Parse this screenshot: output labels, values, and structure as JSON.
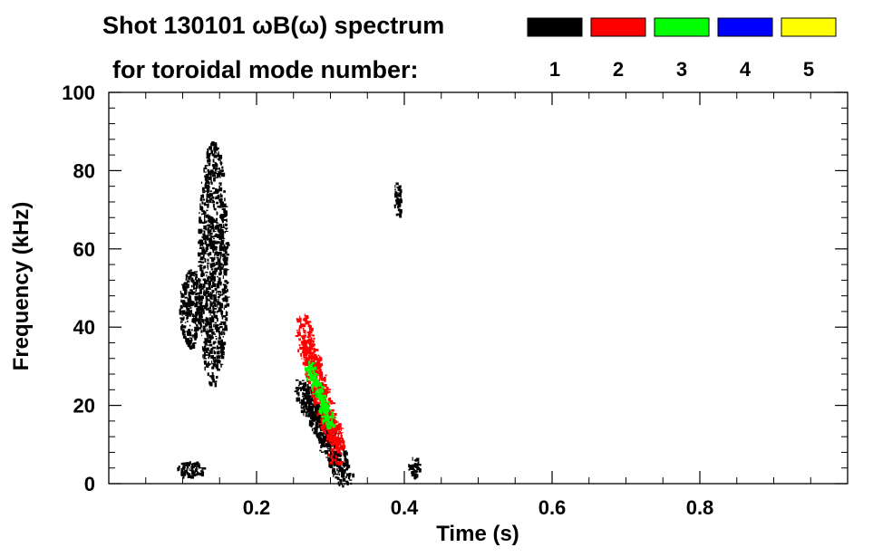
{
  "chart_data": {
    "type": "heatmap",
    "title_line1": "Shot 130101 ωB(ω) spectrum",
    "title_line2": "for toroidal mode number:",
    "xlabel": "Time (s)",
    "ylabel": "Frequency (kHz)",
    "xlim": [
      0.0,
      1.0
    ],
    "ylim": [
      0,
      100
    ],
    "xticks": [
      0.2,
      0.4,
      0.6,
      0.8
    ],
    "xtick_labels": [
      "0.2",
      "0.4",
      "0.6",
      "0.8"
    ],
    "yticks": [
      0,
      20,
      40,
      60,
      80,
      100
    ],
    "ytick_labels": [
      "0",
      "20",
      "40",
      "60",
      "80",
      "100"
    ],
    "legend": [
      {
        "mode": "1",
        "color": "#000000"
      },
      {
        "mode": "2",
        "color": "#ff0000"
      },
      {
        "mode": "3",
        "color": "#00ff00"
      },
      {
        "mode": "4",
        "color": "#0000ff"
      },
      {
        "mode": "5",
        "color": "#ffff00"
      }
    ],
    "features": [
      {
        "name": "mode-1-burst-low",
        "mode": "1",
        "t_range": [
          0.095,
          0.125
        ],
        "f_range": [
          35,
          55
        ]
      },
      {
        "name": "mode-1-burst-main",
        "mode": "1",
        "t_range": [
          0.12,
          0.16
        ],
        "f_range": [
          25,
          88
        ]
      },
      {
        "name": "mode-1-low-freq-0.1s",
        "mode": "1",
        "t_range": [
          0.09,
          0.13
        ],
        "f_range": [
          2,
          6
        ]
      },
      {
        "name": "mode-1-chirp",
        "mode": "1",
        "t_range": [
          0.26,
          0.32
        ],
        "f_range": [
          2,
          25
        ]
      },
      {
        "name": "mode-2-chirp",
        "mode": "2",
        "t_range": [
          0.26,
          0.31
        ],
        "f_range": [
          8,
          40
        ]
      },
      {
        "name": "mode-3-chirp",
        "mode": "3",
        "t_range": [
          0.27,
          0.3
        ],
        "f_range": [
          15,
          30
        ]
      },
      {
        "name": "mode-1-low-freq-0.41s",
        "mode": "1",
        "t_range": [
          0.405,
          0.42
        ],
        "f_range": [
          2,
          7
        ]
      },
      {
        "name": "mode-1-isolated-0.39s",
        "mode": "1",
        "t_range": [
          0.385,
          0.395
        ],
        "f_range": [
          68,
          78
        ]
      }
    ]
  }
}
